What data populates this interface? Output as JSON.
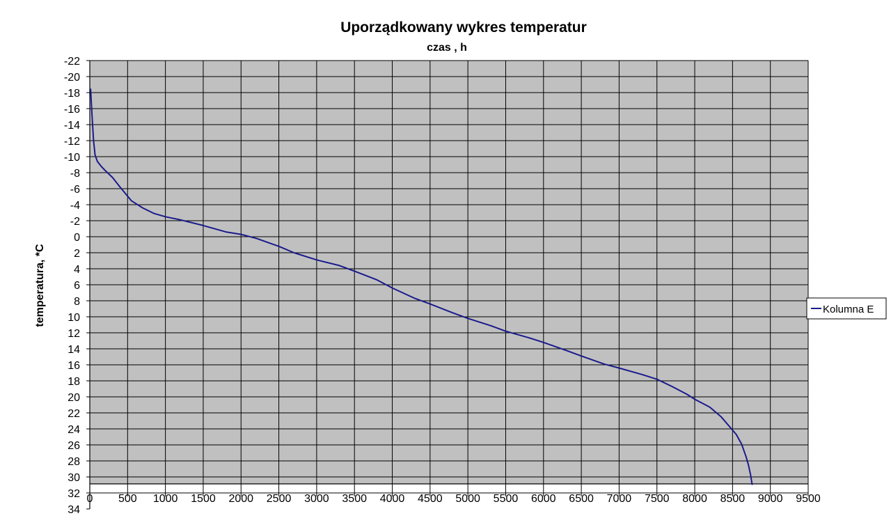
{
  "chart_data": {
    "type": "line",
    "title": "Uporządkowany wykres temperatur",
    "xlabel": "czas , h",
    "ylabel": "temperatura, *C",
    "xlim": [
      0,
      9500
    ],
    "ylim": [
      -22,
      34
    ],
    "y_inverted": true,
    "x_ticks": [
      0,
      500,
      1000,
      1500,
      2000,
      2500,
      3000,
      3500,
      4000,
      4500,
      5000,
      5500,
      6000,
      6500,
      7000,
      7500,
      8000,
      8500,
      9000,
      9500
    ],
    "y_ticks": [
      -22,
      -20,
      -18,
      -16,
      -14,
      -12,
      -10,
      -8,
      -6,
      -4,
      -2,
      0,
      2,
      4,
      6,
      8,
      10,
      12,
      14,
      16,
      18,
      20,
      22,
      24,
      26,
      28,
      30,
      32,
      34
    ],
    "grid": true,
    "legend_position": "right",
    "colors": {
      "plot_bg": "#c0c0c0",
      "line": "#1a1a8c",
      "grid": "#000000"
    },
    "series": [
      {
        "name": "Kolumna E",
        "x": [
          10,
          30,
          50,
          70,
          100,
          150,
          200,
          300,
          400,
          550,
          700,
          850,
          1000,
          1200,
          1500,
          1800,
          2000,
          2200,
          2500,
          2700,
          3000,
          3300,
          3500,
          3800,
          4000,
          4300,
          4500,
          4800,
          5000,
          5300,
          5500,
          5800,
          6000,
          6300,
          6500,
          6800,
          7000,
          7300,
          7500,
          7700,
          7900,
          8000,
          8200,
          8350,
          8450,
          8550,
          8620,
          8680,
          8710,
          8740,
          8760
        ],
        "y": [
          -18.5,
          -15,
          -12,
          -10.2,
          -9.4,
          -8.8,
          -8.3,
          -7.4,
          -6.2,
          -4.5,
          -3.6,
          -2.9,
          -2.5,
          -2.1,
          -1.4,
          -0.6,
          -0.3,
          0.2,
          1.2,
          2,
          2.9,
          3.6,
          4.3,
          5.4,
          6.4,
          7.7,
          8.4,
          9.5,
          10.2,
          11.1,
          11.8,
          12.6,
          13.2,
          14.2,
          14.9,
          15.9,
          16.4,
          17.2,
          17.8,
          18.7,
          19.7,
          20.3,
          21.3,
          22.5,
          23.6,
          24.7,
          25.9,
          27.5,
          28.5,
          29.8,
          31
        ]
      }
    ]
  }
}
